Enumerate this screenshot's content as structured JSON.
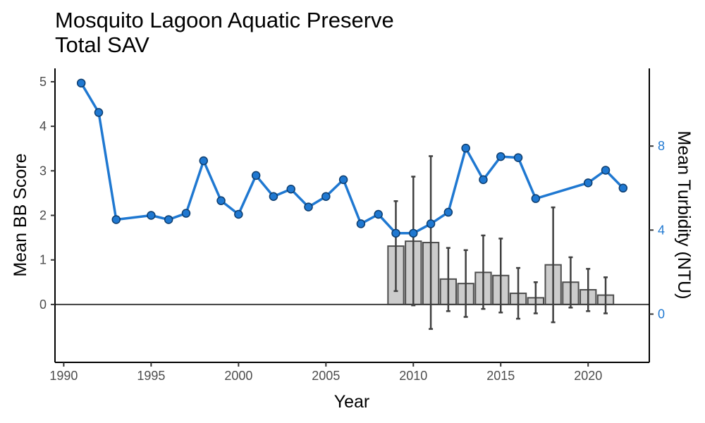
{
  "chart_data": {
    "type": "bar+line",
    "title": "Mosquito Lagoon Aquatic Preserve",
    "subtitle": "Total SAV",
    "xlabel": "Year",
    "ylabel": "Mean BB Score",
    "y2label": "Mean Turbidity (NTU)",
    "xlim": [
      1989.5,
      2023.5
    ],
    "ylim": [
      -1.3,
      5.3
    ],
    "y2lim": [
      -2.3,
      11.7
    ],
    "xticks": [
      1990,
      1995,
      2000,
      2005,
      2010,
      2015,
      2020
    ],
    "yticks": [
      0,
      1,
      2,
      3,
      4,
      5
    ],
    "y2ticks": [
      0,
      4,
      8
    ],
    "grid": false,
    "colors": {
      "line": "#1f78d1",
      "point_outline": "#0d3d6e",
      "bar_fill": "#cccccc",
      "bar_outline": "#4d4d4d",
      "error_bar": "#404040",
      "right_axis": "#1f78d1"
    },
    "bars": {
      "axis": "left",
      "x": [
        2009,
        2010,
        2011,
        2012,
        2013,
        2014,
        2015,
        2016,
        2017,
        2018,
        2019,
        2020,
        2021
      ],
      "values": [
        1.31,
        1.42,
        1.39,
        0.57,
        0.47,
        0.72,
        0.65,
        0.25,
        0.15,
        0.89,
        0.5,
        0.33,
        0.21
      ],
      "error_low": [
        0.3,
        -0.02,
        -0.55,
        -0.15,
        -0.28,
        -0.1,
        -0.18,
        -0.32,
        -0.2,
        -0.4,
        -0.07,
        -0.15,
        -0.2
      ],
      "error_high": [
        2.32,
        2.87,
        3.33,
        1.27,
        1.22,
        1.55,
        1.48,
        0.82,
        0.5,
        2.18,
        1.06,
        0.8,
        0.61
      ]
    },
    "line": {
      "axis": "right",
      "x": [
        1991,
        1992,
        1993,
        1995,
        1996,
        1997,
        1998,
        1999,
        2000,
        2001,
        2002,
        2003,
        2004,
        2005,
        2006,
        2007,
        2008,
        2009,
        2010,
        2011,
        2012,
        2013,
        2014,
        2015,
        2016,
        2017,
        2020,
        2021,
        2022
      ],
      "values": [
        11.0,
        9.6,
        4.5,
        4.7,
        4.5,
        4.8,
        7.3,
        5.4,
        4.75,
        6.6,
        5.6,
        5.95,
        5.1,
        5.6,
        6.4,
        4.3,
        4.75,
        3.85,
        3.85,
        4.3,
        4.85,
        7.9,
        6.4,
        7.5,
        7.45,
        5.5,
        6.25,
        6.85,
        6.0
      ]
    }
  }
}
